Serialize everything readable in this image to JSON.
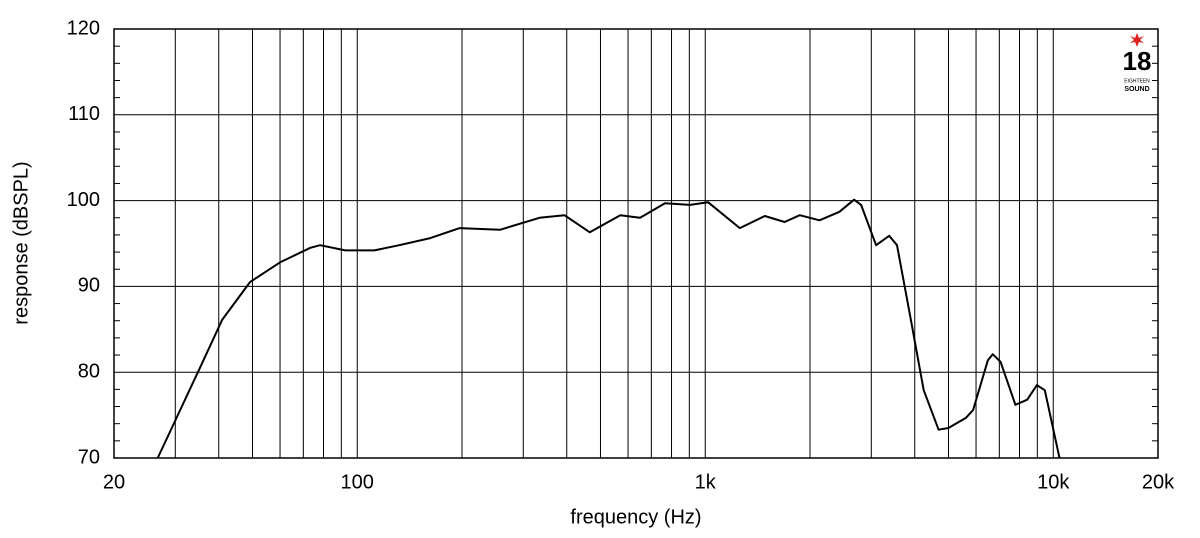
{
  "chart_data": {
    "type": "line",
    "xlabel": "frequency (Hz)",
    "ylabel": "response (dBSPL)",
    "x_scale": "log",
    "grid": true,
    "xlim": [
      20,
      20000
    ],
    "ylim": [
      70,
      120
    ],
    "xticks": [
      20,
      100,
      {
        "value": 1000,
        "label": "1k"
      },
      {
        "value": 10000,
        "label": "10k"
      },
      {
        "value": 20000,
        "label": "20k"
      }
    ],
    "xgrid_minor": [
      30,
      40,
      50,
      60,
      70,
      80,
      90,
      200,
      300,
      400,
      500,
      600,
      700,
      800,
      900,
      2000,
      3000,
      4000,
      5000,
      6000,
      7000,
      8000,
      9000
    ],
    "yticks": [
      70,
      80,
      90,
      100,
      110,
      120
    ],
    "yminor_ticks": [
      72,
      74,
      76,
      78,
      82,
      84,
      86,
      88,
      92,
      94,
      96,
      98,
      102,
      104,
      106,
      108,
      112,
      114,
      116,
      118
    ],
    "logo": {
      "number": "18",
      "line1": "EIGHTEEN",
      "line2": "SOUND"
    },
    "series": [
      {
        "name": "response",
        "color": "#000000",
        "x": [
          26.7,
          31,
          35.3,
          40.9,
          49.2,
          60,
          73.3,
          78.2,
          92.4,
          112,
          132,
          161,
          197,
          257,
          334,
          394,
          466,
          570,
          650,
          766,
          904,
          1020,
          1257,
          1483,
          1691,
          1869,
          2130,
          2429,
          2678,
          2804,
          3098,
          3377,
          3557,
          3898,
          4244,
          4683,
          4996,
          5620,
          5885,
          6489,
          6700,
          7060,
          7787,
          8415,
          8975,
          9458,
          10420
        ],
        "values": [
          70,
          75.6,
          80.5,
          86.1,
          90.5,
          92.8,
          94.5,
          94.8,
          94.2,
          94.2,
          94.8,
          95.6,
          96.8,
          96.6,
          98,
          98.3,
          96.3,
          98.3,
          98,
          99.7,
          99.5,
          99.8,
          96.8,
          98.2,
          97.5,
          98.3,
          97.7,
          98.7,
          100.1,
          99.5,
          94.8,
          95.9,
          94.8,
          86.1,
          77.9,
          73.3,
          73.5,
          74.7,
          75.6,
          81.4,
          82.1,
          81.2,
          76.2,
          76.8,
          78.5,
          77.9,
          70
        ]
      }
    ]
  }
}
